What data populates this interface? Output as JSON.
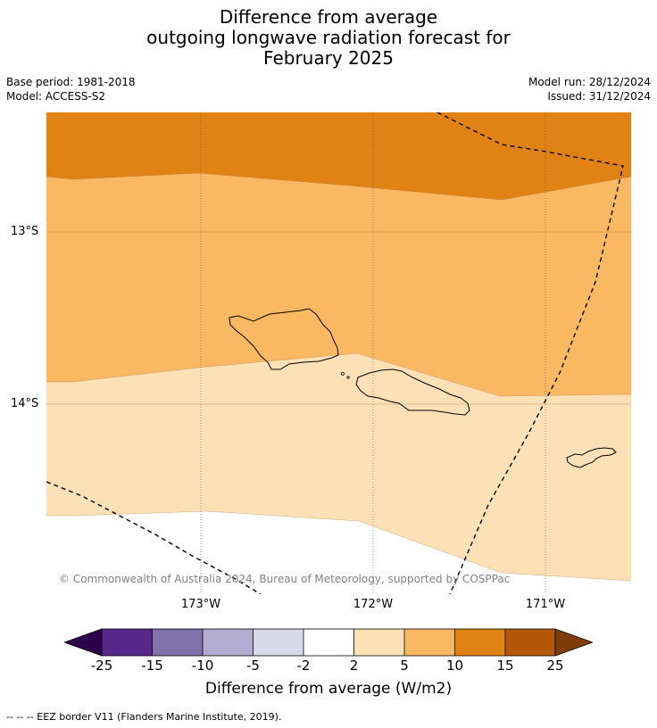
{
  "title": {
    "line1": "Difference from average",
    "line2": "outgoing longwave radiation forecast for",
    "line3": "February 2025"
  },
  "meta": {
    "base_period": "Base period: 1981-2018",
    "model": "Model: ACCESS-S2",
    "model_run": "Model run: 28/12/2024",
    "issued": "Issued: 31/12/2024"
  },
  "map": {
    "latitude_labels": [
      "13°S",
      "14°S"
    ],
    "longitude_labels": [
      "173°W",
      "172°W",
      "171°W"
    ],
    "copyright": "© Commonwealth of Australia 2024, Bureau of Meteorology, supported by COSPPac",
    "colors": {
      "band_high": "#e08214",
      "band_mid": "#fbb863",
      "band_low": "#fde0b6",
      "band_neutral": "#ffffff",
      "coastline": "#000000",
      "eez_border": "#000000"
    }
  },
  "colorbar": {
    "label": "Difference from average (W/m2)",
    "ticks": [
      "-25",
      "-15",
      "-10",
      "-5",
      "-2",
      "2",
      "5",
      "10",
      "15",
      "25"
    ],
    "colors": {
      "below_min": "#2d004b",
      "c1": "#542788",
      "c2": "#8073ac",
      "c3": "#b2abd2",
      "c4": "#d8daeb",
      "c5": "#ffffff",
      "c6": "#fde0b6",
      "c7": "#fbb863",
      "c8": "#e08214",
      "c9": "#b35806",
      "above_max": "#7f3b08"
    }
  },
  "footnote": "--  --  -- EEZ border V11 (Flanders Marine Institute, 2019)."
}
